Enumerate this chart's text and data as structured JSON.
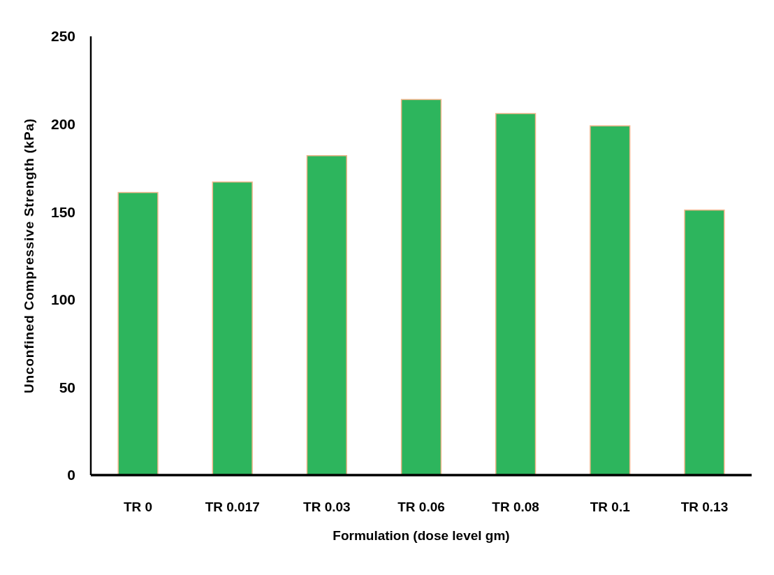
{
  "chart_data": {
    "type": "bar",
    "xlabel": "Formulation (dose level gm)",
    "ylabel": "Unconfined Compressive Strength (kPa)",
    "categories": [
      "TR 0",
      "TR 0.017",
      "TR 0.03",
      "TR 0.06",
      "TR 0.08",
      "TR 0.1",
      "TR 0.13"
    ],
    "values": [
      161,
      167,
      182,
      214,
      206,
      199,
      151
    ],
    "color": "#2db55d",
    "ylim": [
      0,
      250
    ],
    "yticks": [
      0,
      50,
      100,
      150,
      200,
      250
    ]
  }
}
